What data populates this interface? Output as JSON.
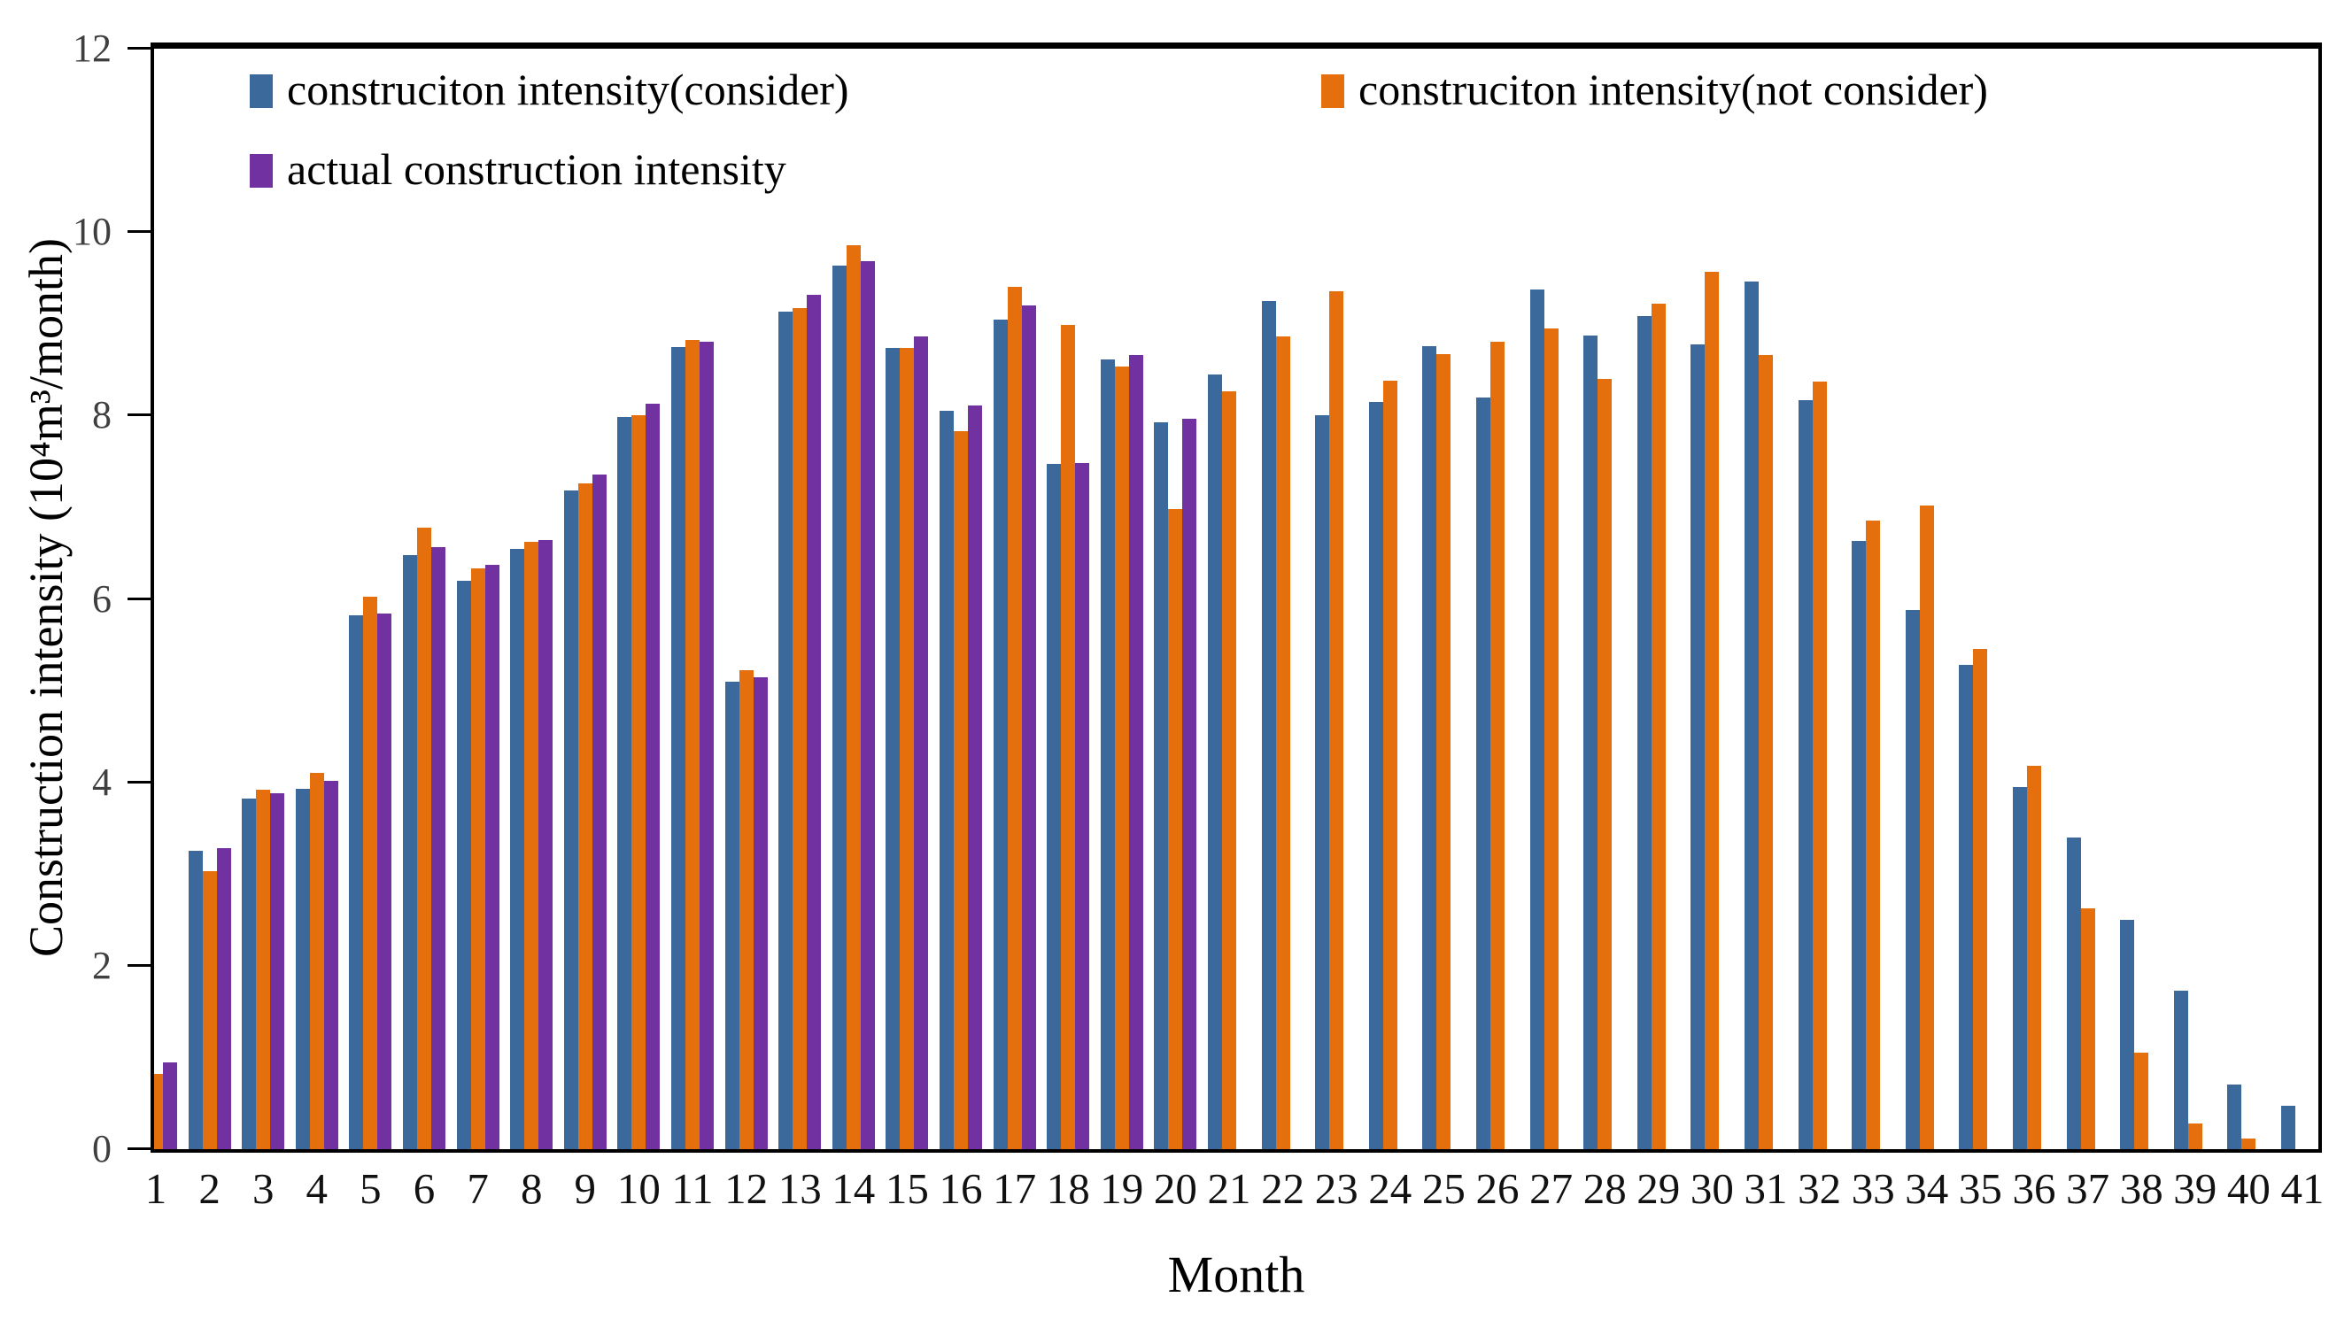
{
  "figure": {
    "background": "#ffffff",
    "border_color": "#000000"
  },
  "chart_data": {
    "type": "bar",
    "title": "",
    "xlabel": "Month",
    "ylabel": "Construction intensity  (10⁴m³/month)",
    "ylim": [
      0,
      12
    ],
    "yticks": [
      0,
      2,
      4,
      6,
      8,
      10,
      12
    ],
    "grid": false,
    "legend_position": "top-inside",
    "categories": [
      1,
      2,
      3,
      4,
      5,
      6,
      7,
      8,
      9,
      10,
      11,
      12,
      13,
      14,
      15,
      16,
      17,
      18,
      19,
      20,
      21,
      22,
      23,
      24,
      25,
      26,
      27,
      28,
      29,
      30,
      31,
      32,
      33,
      34,
      35,
      36,
      37,
      38,
      39,
      40,
      41
    ],
    "series": [
      {
        "name": "construciton intensity(consider)",
        "color": "#3C699B",
        "values": [
          null,
          3.25,
          3.82,
          3.93,
          5.82,
          6.48,
          6.2,
          6.55,
          7.18,
          7.98,
          8.75,
          5.1,
          9.13,
          9.63,
          8.74,
          8.05,
          9.05,
          7.47,
          8.61,
          7.93,
          8.45,
          9.25,
          8.0,
          8.15,
          8.76,
          8.2,
          9.37,
          8.87,
          9.08,
          8.78,
          9.46,
          8.17,
          6.63,
          5.88,
          5.28,
          3.95,
          3.4,
          2.5,
          1.73,
          0.7,
          0.47
        ]
      },
      {
        "name": "construciton intensity(not consider)",
        "color": "#E56F0D",
        "values": [
          0.82,
          3.03,
          3.92,
          4.1,
          6.02,
          6.78,
          6.33,
          6.62,
          7.26,
          8.0,
          8.82,
          5.22,
          9.17,
          9.86,
          8.74,
          7.83,
          9.4,
          8.99,
          8.53,
          6.98,
          8.26,
          8.86,
          9.35,
          8.38,
          8.67,
          8.8,
          8.95,
          8.4,
          9.22,
          9.57,
          8.66,
          8.37,
          6.85,
          7.02,
          5.45,
          4.18,
          2.63,
          1.05,
          0.28,
          0.12,
          null
        ]
      },
      {
        "name": "actual construction intensity",
        "color": "#7231A0",
        "values": [
          0.95,
          3.28,
          3.88,
          4.02,
          5.84,
          6.56,
          6.37,
          6.64,
          7.36,
          8.13,
          8.8,
          5.15,
          9.32,
          9.68,
          8.86,
          8.11,
          9.2,
          7.48,
          8.66,
          7.96,
          null,
          null,
          null,
          null,
          null,
          null,
          null,
          null,
          null,
          null,
          null,
          null,
          null,
          null,
          null,
          null,
          null,
          null,
          null,
          null,
          null
        ]
      }
    ]
  }
}
